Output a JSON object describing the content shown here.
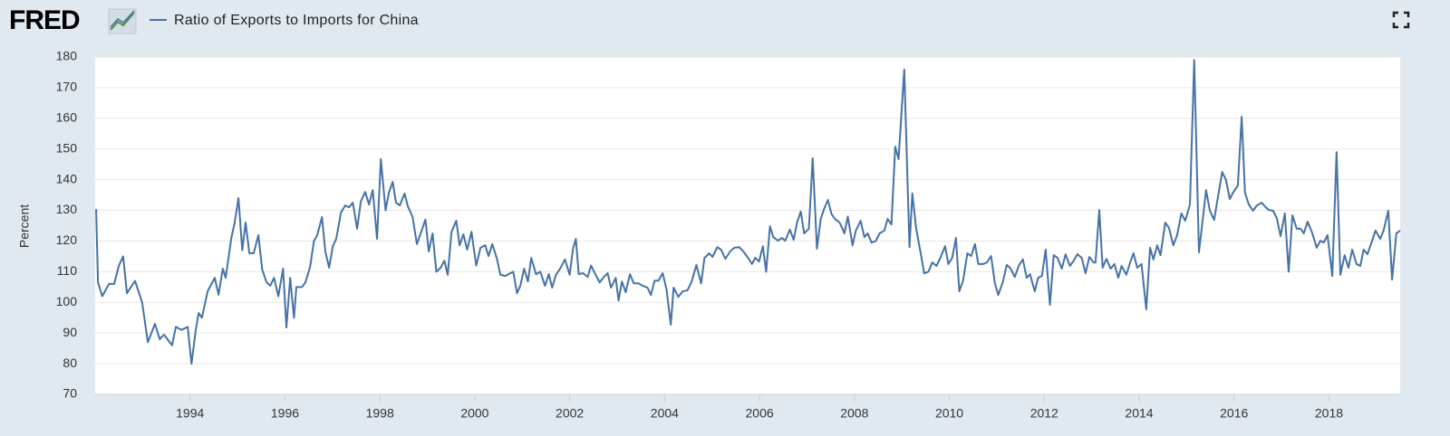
{
  "logo": "FRED",
  "chart_data": {
    "type": "line",
    "y_label": "Percent",
    "xlim": [
      1992,
      2019.5
    ],
    "xticks": [
      1994,
      1996,
      1998,
      2000,
      2002,
      2004,
      2006,
      2008,
      2010,
      2012,
      2014,
      2016,
      2018
    ],
    "ylim": [
      70,
      180
    ],
    "yticks": [
      70,
      80,
      90,
      100,
      110,
      120,
      130,
      140,
      150,
      160,
      170,
      180
    ],
    "grid": true,
    "x": [
      1992.02,
      1992.06,
      1992.15,
      1992.29,
      1992.4,
      1992.5,
      1992.59,
      1992.67,
      1992.84,
      1992.99,
      1993.11,
      1993.26,
      1993.36,
      1993.45,
      1993.62,
      1993.7,
      1993.82,
      1993.95,
      1994.03,
      1994.12,
      1994.18,
      1994.25,
      1994.37,
      1994.52,
      1994.6,
      1994.69,
      1994.75,
      1994.87,
      1994.94,
      1995.02,
      1995.1,
      1995.17,
      1995.25,
      1995.34,
      1995.44,
      1995.52,
      1995.61,
      1995.69,
      1995.77,
      1995.86,
      1995.96,
      1996.03,
      1996.11,
      1996.19,
      1996.24,
      1996.36,
      1996.43,
      1996.53,
      1996.61,
      1996.68,
      1996.78,
      1996.85,
      1996.93,
      1997.01,
      1997.08,
      1997.18,
      1997.27,
      1997.35,
      1997.43,
      1997.52,
      1997.6,
      1997.69,
      1997.77,
      1997.85,
      1997.94,
      1998.02,
      1998.12,
      1998.19,
      1998.27,
      1998.34,
      1998.42,
      1998.52,
      1998.59,
      1998.69,
      1998.78,
      1998.86,
      1998.96,
      1999.03,
      1999.11,
      1999.19,
      1999.28,
      1999.36,
      1999.43,
      1999.51,
      1999.61,
      1999.68,
      1999.76,
      1999.84,
      1999.93,
      2000.03,
      2000.12,
      2000.22,
      2000.29,
      2000.37,
      2000.47,
      2000.54,
      2000.64,
      2000.71,
      2000.81,
      2000.89,
      2000.96,
      2001.04,
      2001.12,
      2001.19,
      2001.29,
      2001.38,
      2001.48,
      2001.56,
      2001.63,
      2001.71,
      2001.8,
      2001.9,
      2002.0,
      2002.07,
      2002.13,
      2002.19,
      2002.28,
      2002.38,
      2002.45,
      2002.53,
      2002.63,
      2002.72,
      2002.8,
      2002.87,
      2002.97,
      2003.03,
      2003.1,
      2003.18,
      2003.27,
      2003.35,
      2003.45,
      2003.54,
      2003.64,
      2003.71,
      2003.79,
      2003.87,
      2003.96,
      2004.04,
      2004.13,
      2004.19,
      2004.29,
      2004.38,
      2004.48,
      2004.57,
      2004.67,
      2004.77,
      2004.84,
      2004.94,
      2005.01,
      2005.11,
      2005.19,
      2005.28,
      2005.38,
      2005.47,
      2005.57,
      2005.66,
      2005.76,
      2005.84,
      2005.91,
      2005.99,
      2006.07,
      2006.14,
      2006.22,
      2006.29,
      2006.39,
      2006.47,
      2006.54,
      2006.64,
      2006.72,
      2006.79,
      2006.87,
      2006.94,
      2007.04,
      2007.12,
      2007.21,
      2007.29,
      2007.36,
      2007.44,
      2007.52,
      2007.59,
      2007.69,
      2007.79,
      2007.86,
      2007.96,
      2008.03,
      2008.13,
      2008.21,
      2008.28,
      2008.36,
      2008.45,
      2008.53,
      2008.63,
      2008.7,
      2008.78,
      2008.86,
      2008.93,
      2009.05,
      2009.16,
      2009.22,
      2009.3,
      2009.39,
      2009.47,
      2009.56,
      2009.64,
      2009.73,
      2009.81,
      2009.91,
      2009.98,
      2010.06,
      2010.14,
      2010.21,
      2010.29,
      2010.38,
      2010.46,
      2010.54,
      2010.61,
      2010.71,
      2010.79,
      2010.88,
      2010.96,
      2011.03,
      2011.13,
      2011.21,
      2011.28,
      2011.38,
      2011.47,
      2011.55,
      2011.63,
      2011.7,
      2011.8,
      2011.87,
      2011.95,
      2012.03,
      2012.12,
      2012.2,
      2012.28,
      2012.37,
      2012.45,
      2012.54,
      2012.62,
      2012.7,
      2012.79,
      2012.87,
      2012.95,
      2013.04,
      2013.08,
      2013.16,
      2013.23,
      2013.31,
      2013.4,
      2013.48,
      2013.56,
      2013.63,
      2013.73,
      2013.81,
      2013.88,
      2013.96,
      2014.05,
      2014.15,
      2014.23,
      2014.3,
      2014.38,
      2014.45,
      2014.55,
      2014.63,
      2014.72,
      2014.8,
      2014.89,
      2014.97,
      2015.07,
      2015.16,
      2015.26,
      2015.33,
      2015.41,
      2015.49,
      2015.58,
      2015.66,
      2015.75,
      2015.83,
      2015.91,
      2015.98,
      2016.08,
      2016.16,
      2016.23,
      2016.31,
      2016.4,
      2016.48,
      2016.58,
      2016.65,
      2016.73,
      2016.82,
      2016.9,
      2016.98,
      2017.07,
      2017.15,
      2017.23,
      2017.32,
      2017.4,
      2017.47,
      2017.55,
      2017.65,
      2017.74,
      2017.82,
      2017.89,
      2017.97,
      2018.07,
      2018.16,
      2018.24,
      2018.33,
      2018.41,
      2018.49,
      2018.58,
      2018.66,
      2018.73,
      2018.81,
      2018.91,
      2018.98,
      2019.08,
      2019.15,
      2019.25,
      2019.33,
      2019.42,
      2019.5
    ],
    "series": [
      {
        "name": "Ratio of Exports to Imports for China",
        "color": "#4572a7",
        "values": [
          130.4,
          106.5,
          102,
          106,
          106,
          112,
          115,
          103,
          107,
          100,
          87,
          93,
          88,
          89.5,
          86,
          92,
          91,
          92,
          80,
          91,
          96.5,
          95,
          103.6,
          108,
          102.5,
          111,
          108,
          121,
          126,
          134,
          117,
          126,
          116,
          116,
          121.9,
          110.7,
          106.6,
          105.4,
          108,
          102,
          111,
          91.8,
          108,
          95,
          105,
          105,
          106.5,
          111.6,
          120,
          121.9,
          127.8,
          116.6,
          111.3,
          118.4,
          120.7,
          129.3,
          131.6,
          131,
          132.5,
          124,
          133,
          136,
          131.9,
          136.6,
          120.7,
          146.7,
          130,
          135.8,
          139.3,
          132.5,
          131.6,
          135.5,
          131.3,
          127.8,
          119,
          122.5,
          127,
          116.6,
          122.5,
          110,
          111.3,
          113.6,
          109,
          123,
          126.6,
          118.6,
          122.2,
          117.2,
          123,
          112,
          117.8,
          118.6,
          115.1,
          119,
          114,
          109,
          108.6,
          109.2,
          110,
          103,
          105.4,
          111,
          106.8,
          114.5,
          109.2,
          110,
          105.4,
          109.2,
          104.8,
          109,
          111,
          114,
          109,
          117.5,
          120.7,
          109.2,
          109.5,
          108.3,
          112,
          109.5,
          106.5,
          108.3,
          109.5,
          104.8,
          108,
          100.6,
          106.8,
          103.3,
          109.2,
          106.2,
          106.2,
          105.4,
          104.8,
          102.4,
          107.1,
          107.1,
          109.5,
          104.2,
          92.7,
          104.8,
          101.8,
          103.6,
          103.9,
          106.8,
          112.2,
          106.2,
          114.5,
          116,
          114.8,
          118,
          117.2,
          114.2,
          116.6,
          117.8,
          118,
          116.6,
          114.5,
          112.5,
          114.5,
          113.3,
          118.3,
          110,
          124.8,
          121.3,
          120.1,
          121,
          120.1,
          123.7,
          120.4,
          126,
          129.6,
          122.5,
          124,
          147,
          117.5,
          127.2,
          130.4,
          133.4,
          128.7,
          127.2,
          126,
          122.5,
          128,
          118.6,
          123.4,
          126.6,
          121.3,
          122.5,
          119.5,
          120,
          122.5,
          123.4,
          127.2,
          125.4,
          150.8,
          146.7,
          175.9,
          118,
          135.5,
          124.2,
          116.6,
          109.5,
          110,
          113,
          111.9,
          114.5,
          118.3,
          112.5,
          114.5,
          121,
          103.6,
          107.1,
          116,
          115.1,
          119,
          112.5,
          112.5,
          113,
          115.1,
          106.2,
          102.4,
          106.8,
          112.2,
          111.3,
          108.3,
          112.2,
          114,
          108,
          109.2,
          103.6,
          108,
          108.6,
          117.2,
          99.2,
          115.4,
          114.5,
          111,
          115.7,
          111.9,
          113.6,
          115.7,
          114.5,
          109.5,
          114.8,
          113,
          113,
          130.1,
          111.3,
          114.2,
          111,
          112.5,
          108,
          111.9,
          109,
          113,
          116,
          111.3,
          112.5,
          97.7,
          117.8,
          114,
          118.6,
          115.4,
          126,
          124.2,
          118.6,
          121.9,
          129,
          126.6,
          131.9,
          179,
          116.3,
          125.7,
          136.6,
          129.9,
          126.9,
          134.3,
          142.5,
          139.9,
          133.7,
          135.8,
          138.1,
          160.5,
          135.8,
          131.9,
          129.9,
          131.6,
          132.5,
          131.3,
          130.1,
          129.9,
          127.5,
          121.6,
          129,
          110,
          128.4,
          124,
          124,
          122.5,
          126.3,
          122.5,
          117.8,
          120.1,
          119.5,
          121.9,
          108.6,
          149,
          109,
          115.4,
          111.3,
          117.2,
          112.5,
          111.9,
          117.2,
          115.7,
          120.1,
          123.4,
          120.7,
          123.4,
          129.9,
          107.4,
          122.5,
          123.4
        ]
      }
    ]
  }
}
